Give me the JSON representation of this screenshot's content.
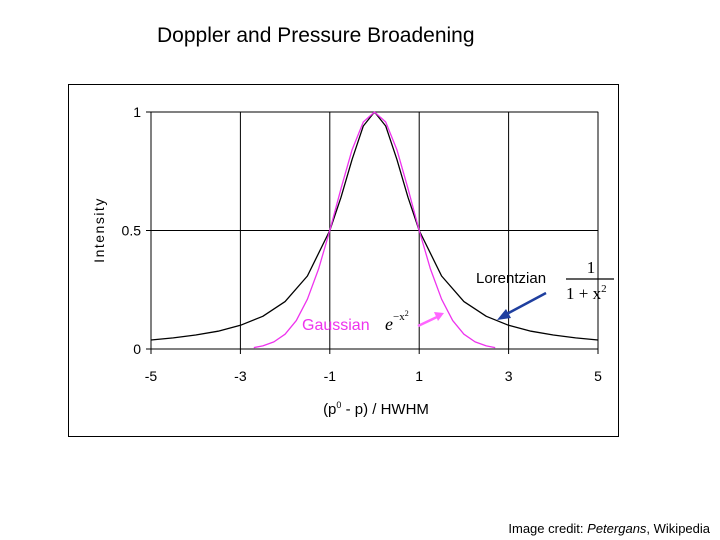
{
  "slide": {
    "title": "Doppler and Pressure Broadening",
    "credit_prefix": "Image credit: ",
    "credit_author": "Petergans",
    "credit_suffix": ", Wikipedia"
  },
  "colors": {
    "lorentzian": "#000000",
    "gaussian": "#ee33ee",
    "arrow_lorentzian": "#1f3f9f",
    "arrow_gaussian": "#ff66ff"
  },
  "chart_data": {
    "type": "line",
    "xlabel_main": "(p",
    "xlabel_sup": "0",
    "xlabel_rest": " - p) / HWHM",
    "ylabel": "Intensity",
    "xlim": [
      -5,
      5
    ],
    "ylim": [
      0,
      1
    ],
    "x_ticks": [
      -5,
      -3,
      -1,
      1,
      3,
      5
    ],
    "x_tick_labels": [
      "-5",
      "-3",
      "-1",
      "1",
      "3",
      "5"
    ],
    "y_ticks": [
      0,
      0.5,
      1
    ],
    "y_tick_labels": [
      "0",
      "0.5",
      "1"
    ],
    "grid": true,
    "series": [
      {
        "name": "Lorentzian",
        "formula": "1/(1+x^2)",
        "x": [
          -5,
          -4.5,
          -4,
          -3.5,
          -3,
          -2.5,
          -2,
          -1.5,
          -1,
          -0.75,
          -0.5,
          -0.25,
          0,
          0.25,
          0.5,
          0.75,
          1,
          1.5,
          2,
          2.5,
          3,
          3.5,
          4,
          4.5,
          5
        ],
        "y": [
          0.038,
          0.047,
          0.059,
          0.075,
          0.1,
          0.138,
          0.2,
          0.308,
          0.5,
          0.64,
          0.8,
          0.941,
          1,
          0.941,
          0.8,
          0.64,
          0.5,
          0.308,
          0.2,
          0.138,
          0.1,
          0.075,
          0.059,
          0.047,
          0.038
        ]
      },
      {
        "name": "Gaussian",
        "formula": "exp(-x^2 ln2)",
        "x": [
          -2.7,
          -2.5,
          -2.25,
          -2,
          -1.75,
          -1.5,
          -1.25,
          -1,
          -0.75,
          -0.5,
          -0.25,
          0,
          0.25,
          0.5,
          0.75,
          1,
          1.25,
          1.5,
          1.75,
          2,
          2.25,
          2.5,
          2.7
        ],
        "y": [
          0.006,
          0.013,
          0.03,
          0.0625,
          0.12,
          0.21,
          0.338,
          0.5,
          0.677,
          0.841,
          0.958,
          1,
          0.958,
          0.841,
          0.677,
          0.5,
          0.338,
          0.21,
          0.12,
          0.0625,
          0.03,
          0.013,
          0.006
        ]
      }
    ],
    "annotations": {
      "lorentzian_label": "Lorentzian",
      "lorentzian_formula_num": "1",
      "lorentzian_formula_den": "1 + x",
      "lorentzian_formula_den_exp": "2",
      "gaussian_label": "Gaussian",
      "gaussian_formula_base": "e",
      "gaussian_formula_exp": "−x",
      "gaussian_formula_exp2": "2"
    }
  }
}
